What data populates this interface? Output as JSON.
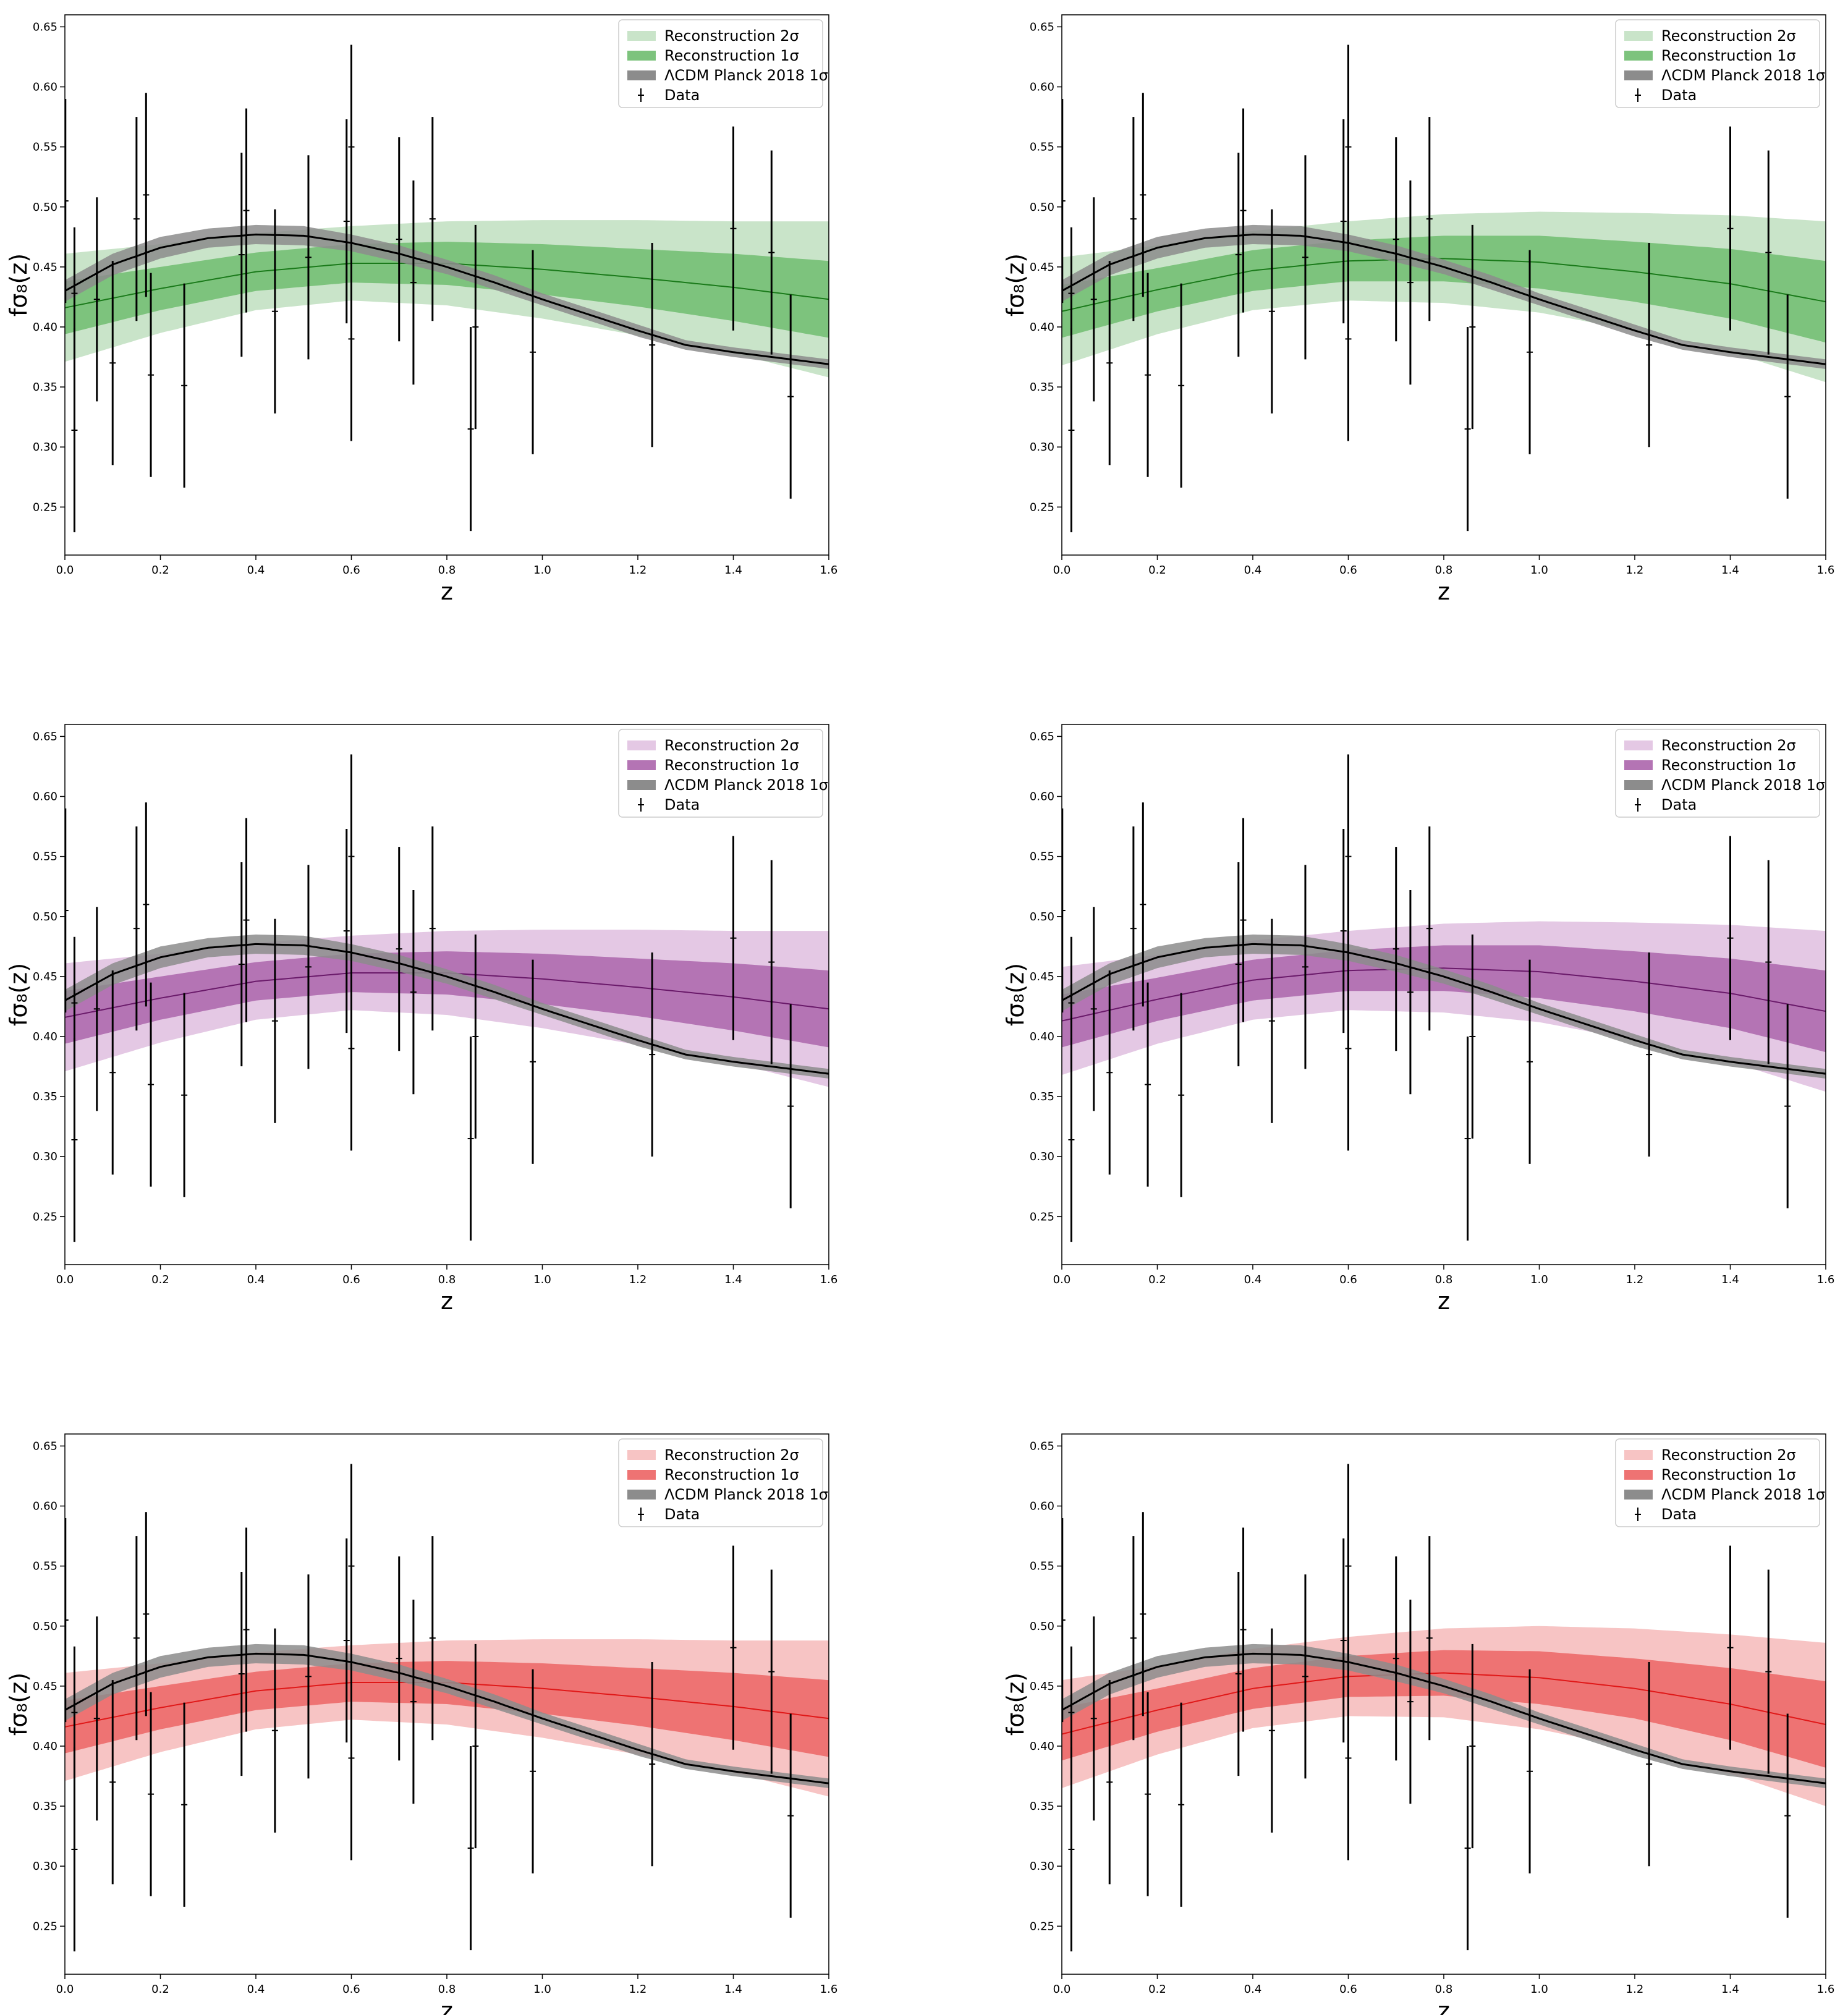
{
  "figure": {
    "grid": {
      "rows": 3,
      "cols": 2
    }
  },
  "chart_data": [
    {
      "type": "line",
      "panel": "row1-left",
      "xlabel": "z",
      "ylabel": "fσ₈(z)",
      "xlim": [
        0.0,
        1.6
      ],
      "ylim": [
        0.21,
        0.66
      ],
      "xticks": [
        "0.0",
        "0.2",
        "0.4",
        "0.6",
        "0.8",
        "1.0",
        "1.2",
        "1.4",
        "1.6"
      ],
      "yticks": [
        "0.25",
        "0.30",
        "0.35",
        "0.40",
        "0.45",
        "0.50",
        "0.55",
        "0.60",
        "0.65"
      ],
      "grid": false,
      "legend_position": "top-right",
      "legend": [
        {
          "label": "Reconstruction 2σ",
          "kind": "band-2sigma"
        },
        {
          "label": "Reconstruction 1σ",
          "kind": "band-1sigma"
        },
        {
          "label": "ΛCDM Planck 2018 1σ",
          "kind": "lcdm"
        },
        {
          "label": "Data",
          "kind": "errorbar"
        }
      ],
      "colors": {
        "band2": "#c9e4c9",
        "band1": "#7dc37d",
        "mean": "#1a7a1a"
      },
      "reconstruction": {
        "z": [
          0.0,
          0.2,
          0.4,
          0.6,
          0.8,
          1.0,
          1.2,
          1.4,
          1.6
        ],
        "mean": [
          0.416,
          0.432,
          0.446,
          0.453,
          0.453,
          0.448,
          0.441,
          0.433,
          0.423
        ],
        "one_sigma": [
          0.022,
          0.018,
          0.016,
          0.016,
          0.018,
          0.021,
          0.024,
          0.028,
          0.032
        ],
        "two_sigma": [
          0.045,
          0.037,
          0.032,
          0.031,
          0.035,
          0.041,
          0.048,
          0.055,
          0.065
        ]
      }
    },
    {
      "type": "line",
      "panel": "row1-right",
      "xlabel": "z",
      "ylabel": "fσ₈(z)",
      "xlim": [
        0.0,
        1.6
      ],
      "ylim": [
        0.21,
        0.66
      ],
      "xticks": [
        "0.0",
        "0.2",
        "0.4",
        "0.6",
        "0.8",
        "1.0",
        "1.2",
        "1.4",
        "1.6"
      ],
      "yticks": [
        "0.25",
        "0.30",
        "0.35",
        "0.40",
        "0.45",
        "0.50",
        "0.55",
        "0.60",
        "0.65"
      ],
      "grid": false,
      "legend_position": "top-right",
      "legend": [
        {
          "label": "Reconstruction 2σ",
          "kind": "band-2sigma"
        },
        {
          "label": "Reconstruction 1σ",
          "kind": "band-1sigma"
        },
        {
          "label": "ΛCDM Planck 2018 1σ",
          "kind": "lcdm"
        },
        {
          "label": "Data",
          "kind": "errorbar"
        }
      ],
      "colors": {
        "band2": "#c9e4c9",
        "band1": "#7dc37d",
        "mean": "#1a7a1a"
      },
      "reconstruction": {
        "z": [
          0.0,
          0.2,
          0.4,
          0.6,
          0.8,
          1.0,
          1.2,
          1.4,
          1.6
        ],
        "mean": [
          0.413,
          0.431,
          0.447,
          0.455,
          0.457,
          0.454,
          0.446,
          0.436,
          0.421
        ],
        "one_sigma": [
          0.022,
          0.018,
          0.017,
          0.017,
          0.019,
          0.022,
          0.025,
          0.029,
          0.034
        ],
        "two_sigma": [
          0.045,
          0.037,
          0.033,
          0.033,
          0.037,
          0.042,
          0.049,
          0.057,
          0.067
        ]
      }
    },
    {
      "type": "line",
      "panel": "row2-left",
      "xlabel": "z",
      "ylabel": "fσ₈(z)",
      "xlim": [
        0.0,
        1.6
      ],
      "ylim": [
        0.21,
        0.66
      ],
      "xticks": [
        "0.0",
        "0.2",
        "0.4",
        "0.6",
        "0.8",
        "1.0",
        "1.2",
        "1.4",
        "1.6"
      ],
      "yticks": [
        "0.25",
        "0.30",
        "0.35",
        "0.40",
        "0.45",
        "0.50",
        "0.55",
        "0.60",
        "0.65"
      ],
      "grid": false,
      "legend_position": "top-right",
      "legend": [
        {
          "label": "Reconstruction 2σ",
          "kind": "band-2sigma"
        },
        {
          "label": "Reconstruction 1σ",
          "kind": "band-1sigma"
        },
        {
          "label": "ΛCDM Planck 2018 1σ",
          "kind": "lcdm"
        },
        {
          "label": "Data",
          "kind": "errorbar"
        }
      ],
      "colors": {
        "band2": "#e4c8e4",
        "band1": "#b474b4",
        "mean": "#6a1a6a"
      },
      "reconstruction": {
        "z": [
          0.0,
          0.2,
          0.4,
          0.6,
          0.8,
          1.0,
          1.2,
          1.4,
          1.6
        ],
        "mean": [
          0.416,
          0.432,
          0.446,
          0.453,
          0.453,
          0.448,
          0.441,
          0.433,
          0.423
        ],
        "one_sigma": [
          0.022,
          0.018,
          0.016,
          0.016,
          0.018,
          0.021,
          0.024,
          0.028,
          0.032
        ],
        "two_sigma": [
          0.045,
          0.037,
          0.032,
          0.031,
          0.035,
          0.041,
          0.048,
          0.055,
          0.065
        ]
      }
    },
    {
      "type": "line",
      "panel": "row2-right",
      "xlabel": "z",
      "ylabel": "fσ₈(z)",
      "xlim": [
        0.0,
        1.6
      ],
      "ylim": [
        0.21,
        0.66
      ],
      "xticks": [
        "0.0",
        "0.2",
        "0.4",
        "0.6",
        "0.8",
        "1.0",
        "1.2",
        "1.4",
        "1.6"
      ],
      "yticks": [
        "0.25",
        "0.30",
        "0.35",
        "0.40",
        "0.45",
        "0.50",
        "0.55",
        "0.60",
        "0.65"
      ],
      "grid": false,
      "legend_position": "top-right",
      "legend": [
        {
          "label": "Reconstruction 2σ",
          "kind": "band-2sigma"
        },
        {
          "label": "Reconstruction 1σ",
          "kind": "band-1sigma"
        },
        {
          "label": "ΛCDM Planck 2018 1σ",
          "kind": "lcdm"
        },
        {
          "label": "Data",
          "kind": "errorbar"
        }
      ],
      "colors": {
        "band2": "#e4c8e4",
        "band1": "#b474b4",
        "mean": "#6a1a6a"
      },
      "reconstruction": {
        "z": [
          0.0,
          0.2,
          0.4,
          0.6,
          0.8,
          1.0,
          1.2,
          1.4,
          1.6
        ],
        "mean": [
          0.413,
          0.431,
          0.447,
          0.455,
          0.457,
          0.454,
          0.446,
          0.436,
          0.421
        ],
        "one_sigma": [
          0.022,
          0.018,
          0.017,
          0.017,
          0.019,
          0.022,
          0.025,
          0.029,
          0.034
        ],
        "two_sigma": [
          0.045,
          0.037,
          0.033,
          0.033,
          0.037,
          0.042,
          0.049,
          0.057,
          0.067
        ]
      }
    },
    {
      "type": "line",
      "panel": "row3-left",
      "xlabel": "z",
      "ylabel": "fσ₈(z)",
      "xlim": [
        0.0,
        1.6
      ],
      "ylim": [
        0.21,
        0.66
      ],
      "xticks": [
        "0.0",
        "0.2",
        "0.4",
        "0.6",
        "0.8",
        "1.0",
        "1.2",
        "1.4",
        "1.6"
      ],
      "yticks": [
        "0.25",
        "0.30",
        "0.35",
        "0.40",
        "0.45",
        "0.50",
        "0.55",
        "0.60",
        "0.65"
      ],
      "grid": false,
      "legend_position": "top-right",
      "legend": [
        {
          "label": "Reconstruction 2σ",
          "kind": "band-2sigma"
        },
        {
          "label": "Reconstruction 1σ",
          "kind": "band-1sigma"
        },
        {
          "label": "ΛCDM Planck 2018 1σ",
          "kind": "lcdm"
        },
        {
          "label": "Data",
          "kind": "errorbar"
        }
      ],
      "colors": {
        "band2": "#f7c4c4",
        "band1": "#ee7373",
        "mean": "#e01818"
      },
      "reconstruction": {
        "z": [
          0.0,
          0.2,
          0.4,
          0.6,
          0.8,
          1.0,
          1.2,
          1.4,
          1.6
        ],
        "mean": [
          0.416,
          0.432,
          0.446,
          0.453,
          0.453,
          0.448,
          0.441,
          0.433,
          0.423
        ],
        "one_sigma": [
          0.022,
          0.018,
          0.016,
          0.016,
          0.018,
          0.021,
          0.024,
          0.028,
          0.032
        ],
        "two_sigma": [
          0.045,
          0.037,
          0.032,
          0.031,
          0.035,
          0.041,
          0.048,
          0.055,
          0.065
        ]
      }
    },
    {
      "type": "line",
      "panel": "row3-right",
      "xlabel": "z",
      "ylabel": "fσ₈(z)",
      "xlim": [
        0.0,
        1.6
      ],
      "ylim": [
        0.21,
        0.66
      ],
      "xticks": [
        "0.0",
        "0.2",
        "0.4",
        "0.6",
        "0.8",
        "1.0",
        "1.2",
        "1.4",
        "1.6"
      ],
      "yticks": [
        "0.25",
        "0.30",
        "0.35",
        "0.40",
        "0.45",
        "0.50",
        "0.55",
        "0.60",
        "0.65"
      ],
      "grid": false,
      "legend_position": "top-right",
      "legend": [
        {
          "label": "Reconstruction 2σ",
          "kind": "band-2sigma"
        },
        {
          "label": "Reconstruction 1σ",
          "kind": "band-1sigma"
        },
        {
          "label": "ΛCDM Planck 2018 1σ",
          "kind": "lcdm"
        },
        {
          "label": "Data",
          "kind": "errorbar"
        }
      ],
      "colors": {
        "band2": "#f7c4c4",
        "band1": "#ee7373",
        "mean": "#e01818"
      },
      "reconstruction": {
        "z": [
          0.0,
          0.2,
          0.4,
          0.6,
          0.8,
          1.0,
          1.2,
          1.4,
          1.6
        ],
        "mean": [
          0.41,
          0.43,
          0.448,
          0.458,
          0.461,
          0.457,
          0.448,
          0.435,
          0.418
        ],
        "one_sigma": [
          0.022,
          0.018,
          0.017,
          0.017,
          0.019,
          0.022,
          0.025,
          0.03,
          0.036
        ],
        "two_sigma": [
          0.045,
          0.037,
          0.033,
          0.033,
          0.037,
          0.043,
          0.05,
          0.058,
          0.068
        ]
      }
    }
  ],
  "shared": {
    "lcdm": {
      "z": [
        0.0,
        0.1,
        0.2,
        0.3,
        0.4,
        0.5,
        0.6,
        0.7,
        0.8,
        0.9,
        1.0,
        1.1,
        1.2,
        1.3,
        1.4,
        1.5,
        1.6
      ],
      "mean": [
        0.43,
        0.452,
        0.466,
        0.474,
        0.477,
        0.476,
        0.47,
        0.461,
        0.45,
        0.437,
        0.423,
        0.41,
        0.397,
        0.385,
        0.379,
        0.374,
        0.369
      ],
      "one_sigma": [
        0.009,
        0.009,
        0.009,
        0.008,
        0.008,
        0.008,
        0.007,
        0.007,
        0.006,
        0.006,
        0.005,
        0.005,
        0.005,
        0.004,
        0.004,
        0.004,
        0.004
      ],
      "colors": {
        "band": "#8c8c8c",
        "mean": "#000000"
      }
    },
    "data": {
      "z": [
        0.001,
        0.02,
        0.02,
        0.067,
        0.1,
        0.15,
        0.17,
        0.18,
        0.25,
        0.37,
        0.38,
        0.44,
        0.51,
        0.59,
        0.6,
        0.6,
        0.7,
        0.73,
        0.77,
        0.85,
        0.86,
        0.98,
        1.23,
        1.4,
        1.48,
        1.52
      ],
      "fs8": [
        0.505,
        0.314,
        0.428,
        0.423,
        0.37,
        0.49,
        0.51,
        0.36,
        0.3512,
        0.4602,
        0.497,
        0.413,
        0.458,
        0.488,
        0.55,
        0.39,
        0.473,
        0.437,
        0.49,
        0.315,
        0.4,
        0.379,
        0.385,
        0.482,
        0.462,
        0.342
      ],
      "err": [
        0.085,
        0.085,
        0.055,
        0.085,
        0.085,
        0.085,
        0.085,
        0.085,
        0.085,
        0.085,
        0.085,
        0.085,
        0.085,
        0.085,
        0.085,
        0.085,
        0.085,
        0.085,
        0.085,
        0.085,
        0.085,
        0.085,
        0.085,
        0.085,
        0.085,
        0.085
      ]
    }
  }
}
